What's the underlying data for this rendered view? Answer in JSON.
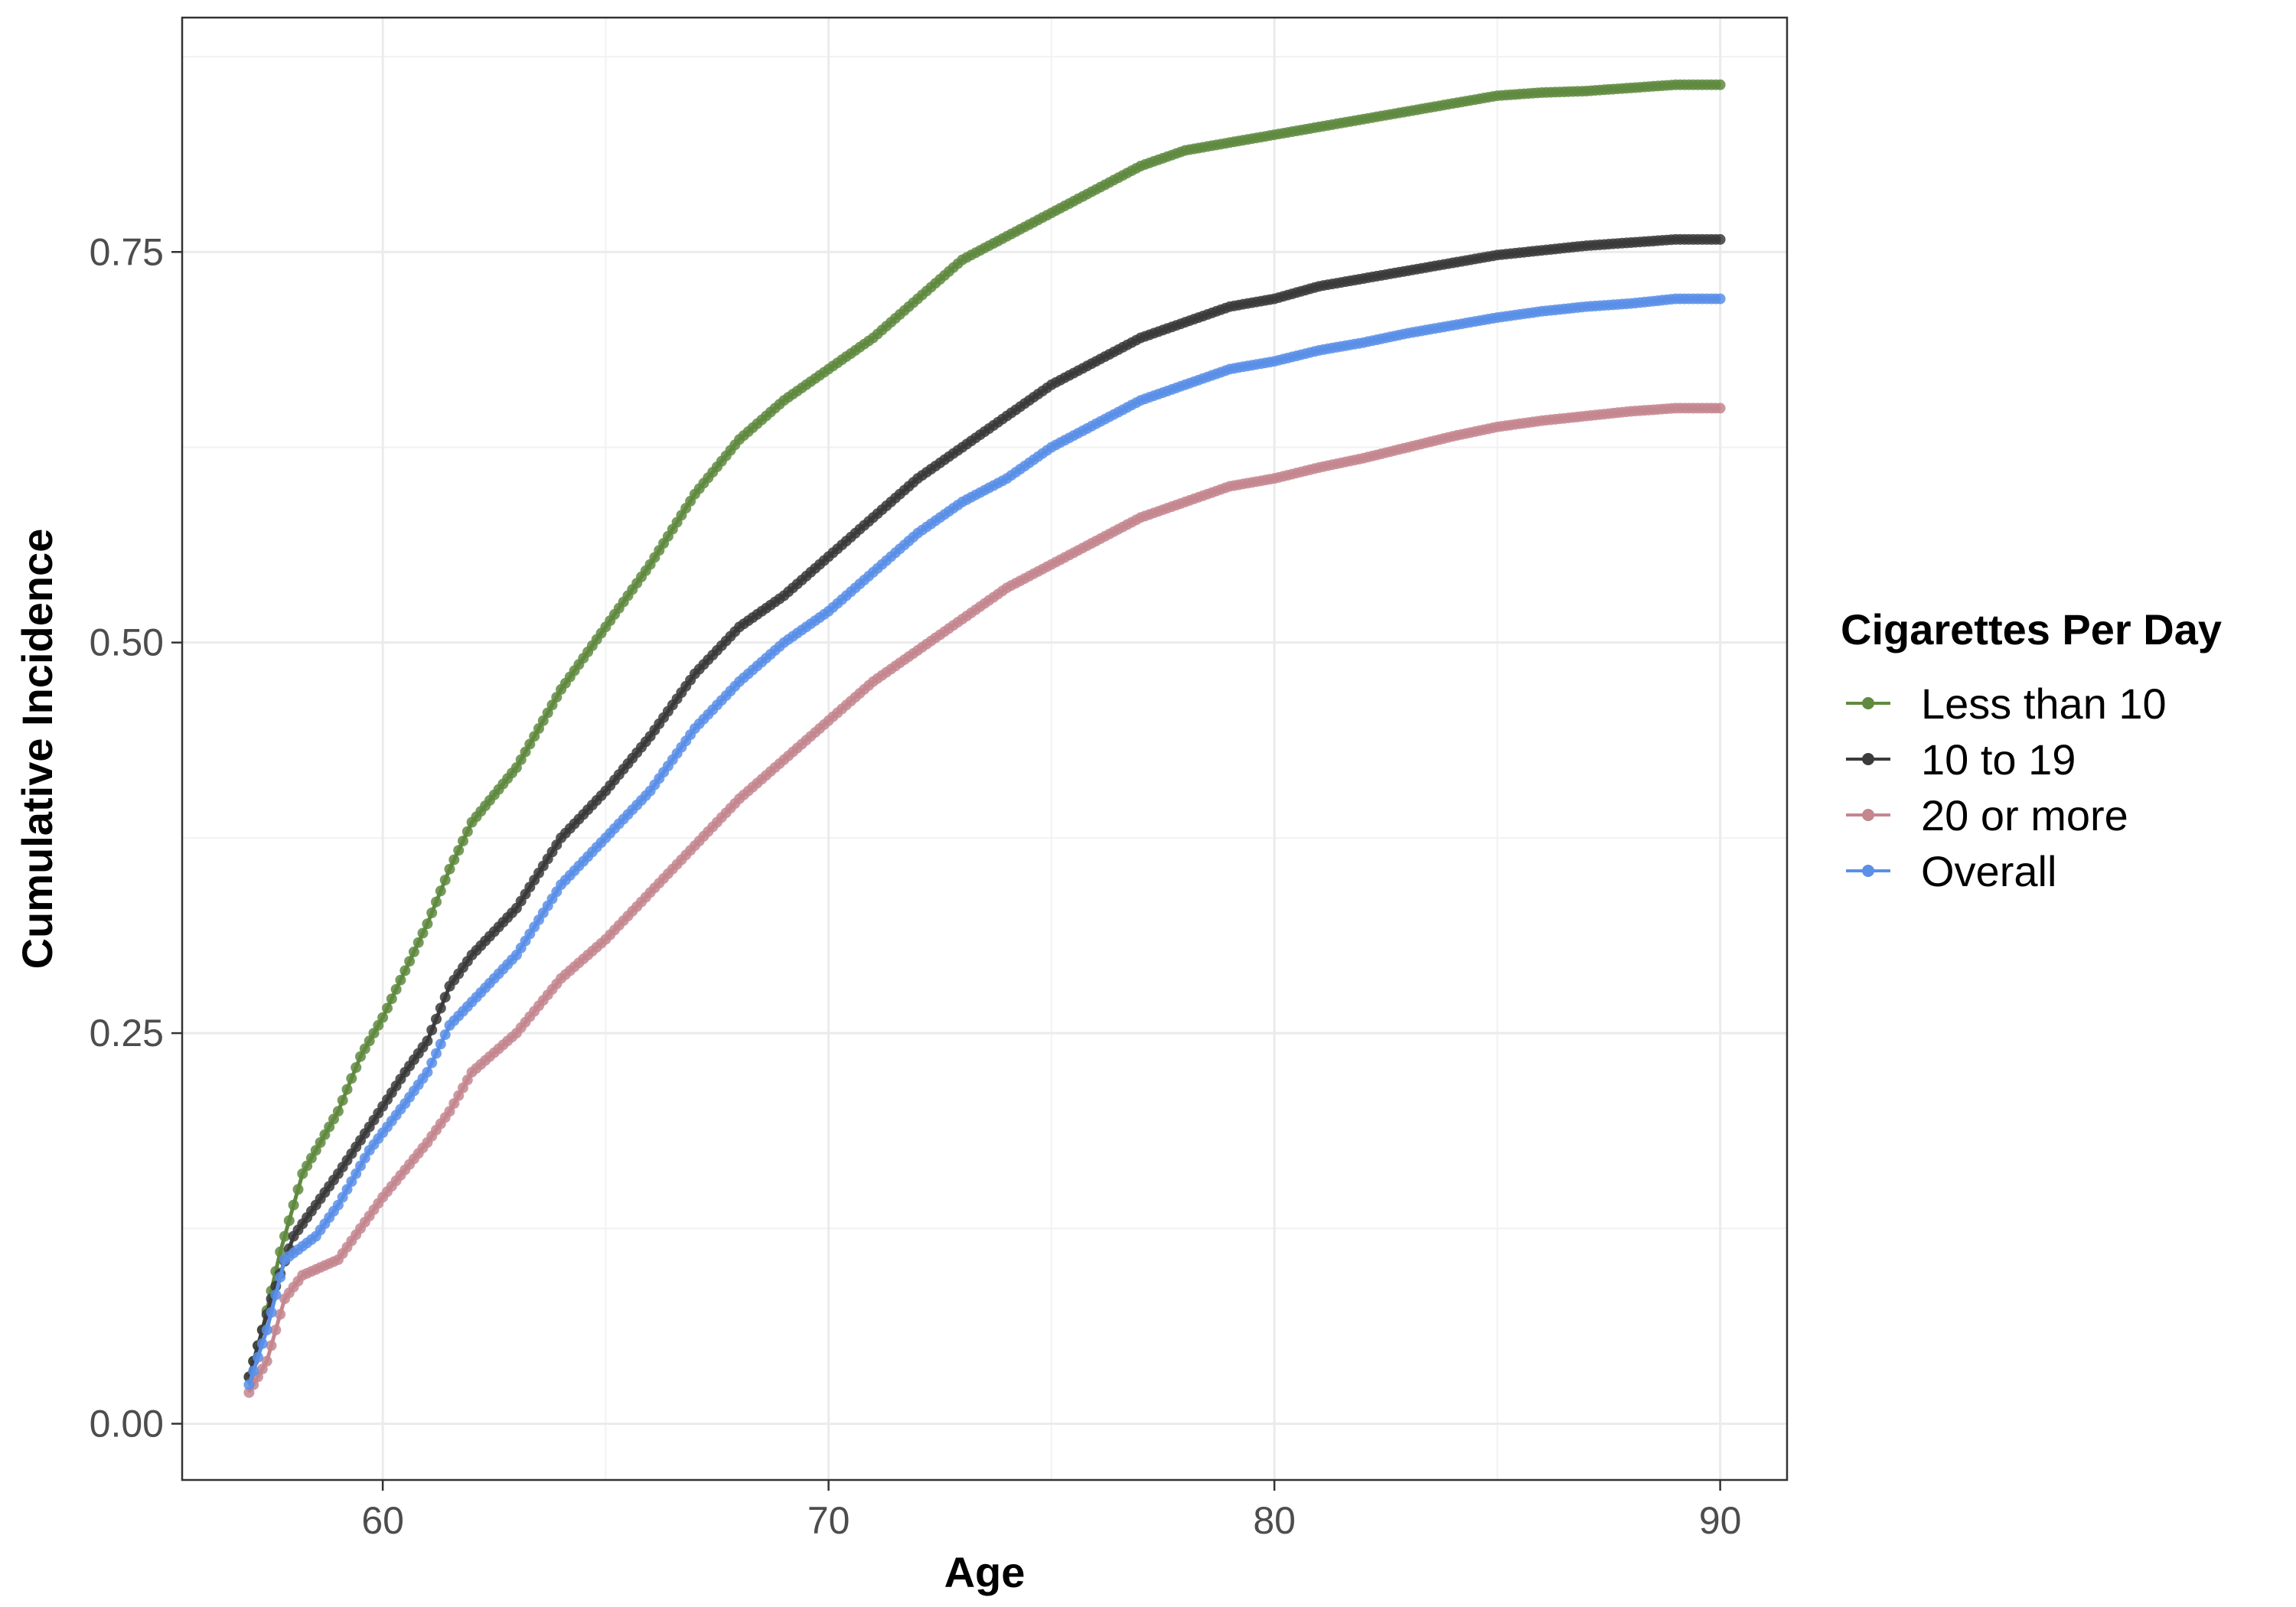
{
  "chart_data": {
    "type": "line",
    "title": "",
    "xlabel": "Age",
    "ylabel": "Cumulative Incidence",
    "xlim": [
      55.5,
      91.5
    ],
    "ylim": [
      -0.036,
      0.9
    ],
    "x_ticks": [
      60,
      70,
      80,
      90
    ],
    "x_tick_labels": [
      "60",
      "70",
      "80",
      "90"
    ],
    "y_ticks": [
      0,
      0.25,
      0.5,
      0.75
    ],
    "y_tick_labels": [
      "0.00",
      "0.25",
      "0.50",
      "0.75"
    ],
    "grid": true,
    "markers": true,
    "legend": {
      "title": "Cigarettes Per Day",
      "position": "right"
    },
    "series": [
      {
        "name": "Less than 10",
        "color": "#5f8a3f",
        "points": [
          [
            57,
            0.03
          ],
          [
            57.3,
            0.06
          ],
          [
            57.7,
            0.11
          ],
          [
            58.2,
            0.16
          ],
          [
            59,
            0.2
          ],
          [
            59.5,
            0.235
          ],
          [
            60,
            0.26
          ],
          [
            61,
            0.32
          ],
          [
            61.5,
            0.355
          ],
          [
            62,
            0.385
          ],
          [
            63,
            0.42
          ],
          [
            64,
            0.47
          ],
          [
            65,
            0.51
          ],
          [
            66,
            0.55
          ],
          [
            67,
            0.595
          ],
          [
            68,
            0.63
          ],
          [
            69,
            0.655
          ],
          [
            70,
            0.675
          ],
          [
            71,
            0.695
          ],
          [
            72,
            0.72
          ],
          [
            73,
            0.745
          ],
          [
            74,
            0.76
          ],
          [
            75,
            0.775
          ],
          [
            76,
            0.79
          ],
          [
            77,
            0.805
          ],
          [
            78,
            0.815
          ],
          [
            79,
            0.82
          ],
          [
            80,
            0.825
          ],
          [
            81,
            0.83
          ],
          [
            82,
            0.835
          ],
          [
            83,
            0.84
          ],
          [
            84,
            0.845
          ],
          [
            85,
            0.85
          ],
          [
            86,
            0.852
          ],
          [
            87,
            0.853
          ],
          [
            88,
            0.855
          ],
          [
            89,
            0.857
          ],
          [
            90,
            0.857
          ]
        ]
      },
      {
        "name": "10 to 19",
        "color": "#3b3b3b",
        "points": [
          [
            57,
            0.03
          ],
          [
            57.5,
            0.08
          ],
          [
            58,
            0.12
          ],
          [
            59,
            0.16
          ],
          [
            59.7,
            0.19
          ],
          [
            60.5,
            0.225
          ],
          [
            61,
            0.245
          ],
          [
            61.5,
            0.28
          ],
          [
            62,
            0.3
          ],
          [
            63,
            0.33
          ],
          [
            64,
            0.375
          ],
          [
            65,
            0.405
          ],
          [
            66,
            0.44
          ],
          [
            67,
            0.48
          ],
          [
            68,
            0.51
          ],
          [
            69,
            0.53
          ],
          [
            70,
            0.555
          ],
          [
            71,
            0.58
          ],
          [
            72,
            0.605
          ],
          [
            73,
            0.625
          ],
          [
            74,
            0.645
          ],
          [
            75,
            0.665
          ],
          [
            76,
            0.68
          ],
          [
            77,
            0.695
          ],
          [
            78,
            0.705
          ],
          [
            79,
            0.715
          ],
          [
            80,
            0.72
          ],
          [
            81,
            0.728
          ],
          [
            82,
            0.733
          ],
          [
            83,
            0.738
          ],
          [
            84,
            0.743
          ],
          [
            85,
            0.748
          ],
          [
            86,
            0.751
          ],
          [
            87,
            0.754
          ],
          [
            88,
            0.756
          ],
          [
            89,
            0.758
          ],
          [
            90,
            0.758
          ]
        ]
      },
      {
        "name": "20 or more",
        "color": "#c4868f",
        "points": [
          [
            57,
            0.02
          ],
          [
            57.4,
            0.04
          ],
          [
            57.8,
            0.08
          ],
          [
            58.2,
            0.095
          ],
          [
            59,
            0.105
          ],
          [
            59.5,
            0.125
          ],
          [
            60,
            0.145
          ],
          [
            61,
            0.18
          ],
          [
            61.5,
            0.2
          ],
          [
            62,
            0.225
          ],
          [
            63,
            0.25
          ],
          [
            64,
            0.285
          ],
          [
            65,
            0.31
          ],
          [
            66,
            0.34
          ],
          [
            67,
            0.37
          ],
          [
            68,
            0.4
          ],
          [
            69,
            0.425
          ],
          [
            70,
            0.45
          ],
          [
            71,
            0.475
          ],
          [
            72,
            0.495
          ],
          [
            73,
            0.515
          ],
          [
            74,
            0.535
          ],
          [
            75,
            0.55
          ],
          [
            76,
            0.565
          ],
          [
            77,
            0.58
          ],
          [
            78,
            0.59
          ],
          [
            79,
            0.6
          ],
          [
            80,
            0.605
          ],
          [
            81,
            0.612
          ],
          [
            82,
            0.618
          ],
          [
            83,
            0.625
          ],
          [
            84,
            0.632
          ],
          [
            85,
            0.638
          ],
          [
            86,
            0.642
          ],
          [
            87,
            0.645
          ],
          [
            88,
            0.648
          ],
          [
            89,
            0.65
          ],
          [
            90,
            0.65
          ]
        ]
      },
      {
        "name": "Overall",
        "color": "#5b8fe8",
        "points": [
          [
            57,
            0.025
          ],
          [
            57.4,
            0.06
          ],
          [
            57.8,
            0.105
          ],
          [
            58.5,
            0.12
          ],
          [
            59,
            0.14
          ],
          [
            59.7,
            0.175
          ],
          [
            60.5,
            0.205
          ],
          [
            61,
            0.225
          ],
          [
            61.5,
            0.255
          ],
          [
            62,
            0.27
          ],
          [
            63,
            0.3
          ],
          [
            64,
            0.345
          ],
          [
            65,
            0.375
          ],
          [
            66,
            0.405
          ],
          [
            67,
            0.445
          ],
          [
            68,
            0.475
          ],
          [
            69,
            0.5
          ],
          [
            70,
            0.52
          ],
          [
            71,
            0.545
          ],
          [
            72,
            0.57
          ],
          [
            73,
            0.59
          ],
          [
            74,
            0.605
          ],
          [
            75,
            0.625
          ],
          [
            76,
            0.64
          ],
          [
            77,
            0.655
          ],
          [
            78,
            0.665
          ],
          [
            79,
            0.675
          ],
          [
            80,
            0.68
          ],
          [
            81,
            0.687
          ],
          [
            82,
            0.692
          ],
          [
            83,
            0.698
          ],
          [
            84,
            0.703
          ],
          [
            85,
            0.708
          ],
          [
            86,
            0.712
          ],
          [
            87,
            0.715
          ],
          [
            88,
            0.717
          ],
          [
            89,
            0.72
          ],
          [
            90,
            0.72
          ]
        ]
      }
    ]
  }
}
